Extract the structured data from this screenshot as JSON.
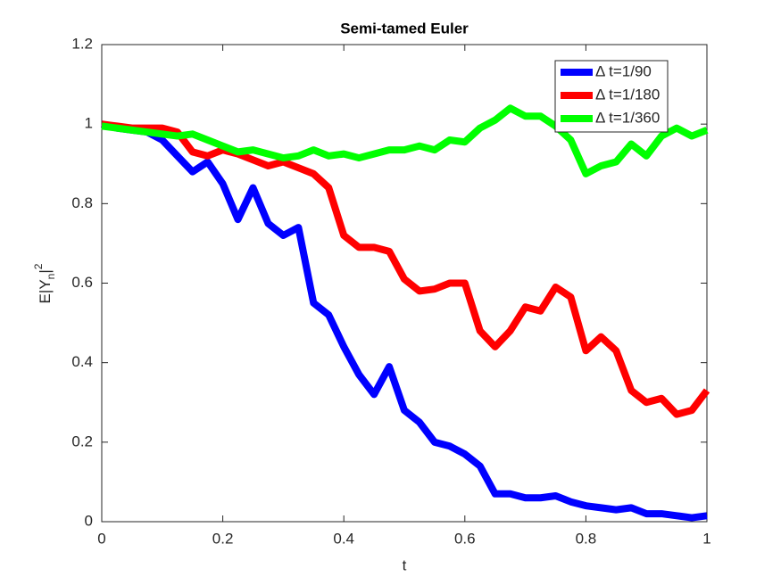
{
  "chart_data": {
    "type": "line",
    "title": "Semi-tamed Euler",
    "xlabel": "t",
    "ylabel": [
      "E|Y",
      "n",
      "|",
      "2"
    ],
    "x": [
      0,
      0.025,
      0.05,
      0.075,
      0.1,
      0.125,
      0.15,
      0.175,
      0.2,
      0.225,
      0.25,
      0.275,
      0.3,
      0.325,
      0.35,
      0.375,
      0.4,
      0.425,
      0.45,
      0.475,
      0.5,
      0.525,
      0.55,
      0.575,
      0.6,
      0.625,
      0.65,
      0.675,
      0.7,
      0.725,
      0.75,
      0.775,
      0.8,
      0.825,
      0.85,
      0.875,
      0.9,
      0.925,
      0.95,
      0.975,
      1
    ],
    "series": [
      {
        "name": "Δ t=1/90",
        "color": "#0000ff",
        "values": [
          1.0,
          0.99,
          0.985,
          0.98,
          0.96,
          0.92,
          0.88,
          0.905,
          0.85,
          0.76,
          0.84,
          0.75,
          0.72,
          0.74,
          0.55,
          0.52,
          0.44,
          0.37,
          0.32,
          0.39,
          0.28,
          0.25,
          0.2,
          0.19,
          0.17,
          0.14,
          0.07,
          0.07,
          0.06,
          0.06,
          0.065,
          0.05,
          0.04,
          0.035,
          0.03,
          0.035,
          0.02,
          0.02,
          0.015,
          0.01,
          0.015
        ]
      },
      {
        "name": "Δ t=1/180",
        "color": "#ff0000",
        "values": [
          1.0,
          0.995,
          0.99,
          0.99,
          0.99,
          0.98,
          0.93,
          0.92,
          0.935,
          0.925,
          0.91,
          0.895,
          0.905,
          0.89,
          0.875,
          0.84,
          0.72,
          0.69,
          0.69,
          0.68,
          0.61,
          0.58,
          0.585,
          0.6,
          0.6,
          0.48,
          0.44,
          0.48,
          0.54,
          0.53,
          0.59,
          0.565,
          0.43,
          0.465,
          0.43,
          0.33,
          0.3,
          0.31,
          0.27,
          0.28,
          0.33
        ]
      },
      {
        "name": "Δ t=1/360",
        "color": "#00ff00",
        "values": [
          0.995,
          0.99,
          0.985,
          0.98,
          0.975,
          0.97,
          0.975,
          0.96,
          0.945,
          0.93,
          0.935,
          0.925,
          0.915,
          0.92,
          0.935,
          0.92,
          0.925,
          0.915,
          0.925,
          0.935,
          0.935,
          0.945,
          0.935,
          0.96,
          0.955,
          0.99,
          1.01,
          1.04,
          1.02,
          1.02,
          0.995,
          0.96,
          0.875,
          0.895,
          0.905,
          0.95,
          0.92,
          0.97,
          0.99,
          0.97,
          0.985
        ]
      }
    ],
    "xlim": [
      0,
      1
    ],
    "xticks": [
      0,
      0.2,
      0.4,
      0.6,
      0.8,
      1
    ],
    "ylim": [
      0,
      1.2
    ],
    "yticks": [
      0,
      0.2,
      0.4,
      0.6,
      0.8,
      1,
      1.2
    ],
    "grid": false,
    "legend": "upper right"
  }
}
